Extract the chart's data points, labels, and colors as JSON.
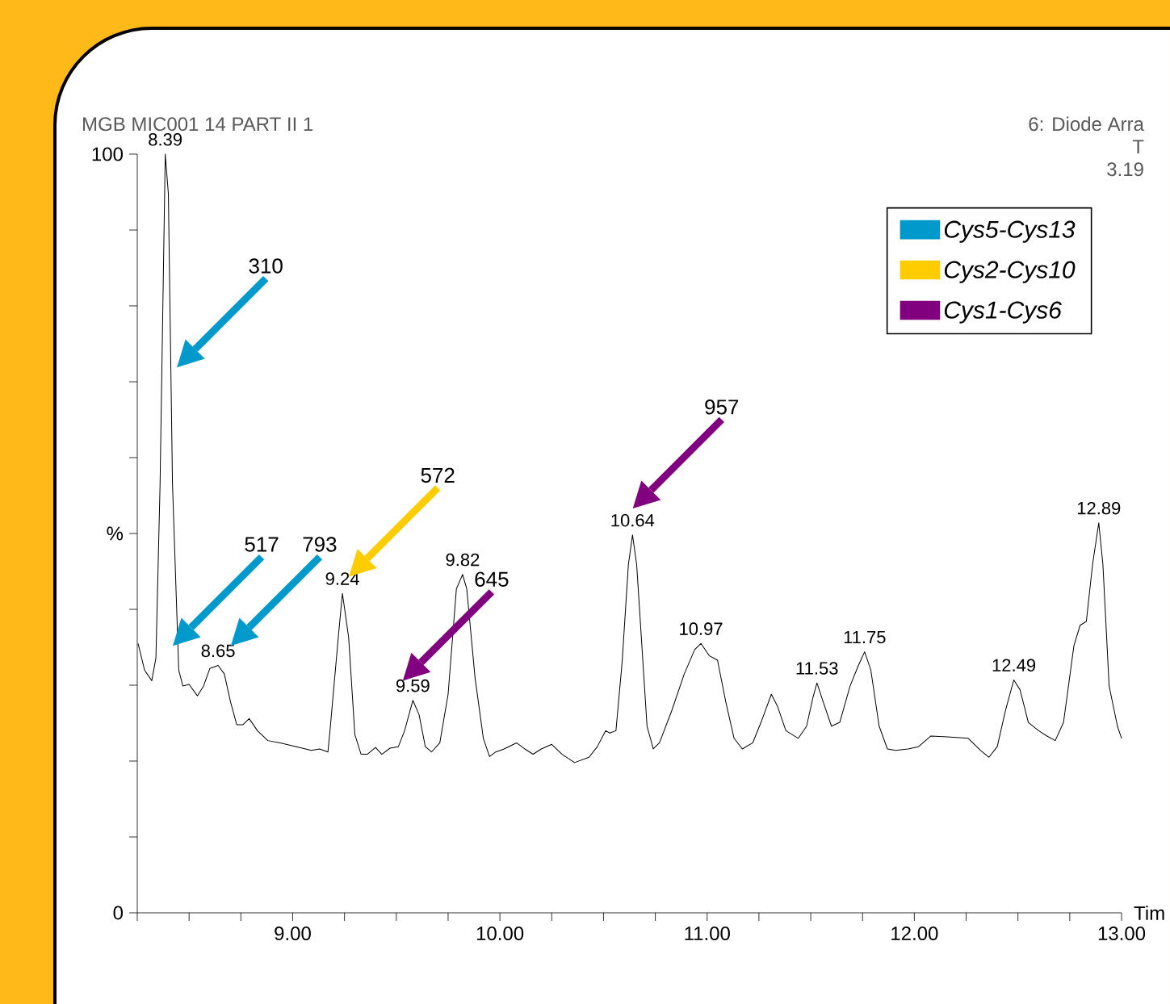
{
  "chart_data": {
    "type": "line",
    "title": "MGB MIC001 14 PART II 1",
    "xlabel": "Tim",
    "annotations": [
      "6: Diode Arra",
      "T",
      "3.19",
      {
        "text": "8.39",
        "x": 8.385,
        "y": 100
      },
      {
        "text": "8.65",
        "x": 8.64,
        "y": 32.6
      },
      {
        "text": "9.24",
        "x": 9.24,
        "y": 42.1
      },
      {
        "text": "9.59",
        "x": 9.58,
        "y": 28.0
      },
      {
        "text": "9.82",
        "x": 9.82,
        "y": 44.6
      },
      {
        "text": "10.64",
        "x": 10.64,
        "y": 49.8
      },
      {
        "text": "10.97",
        "x": 10.97,
        "y": 35.5
      },
      {
        "text": "11.53",
        "x": 11.53,
        "y": 30.3
      },
      {
        "text": "11.75",
        "x": 11.76,
        "y": 34.4
      },
      {
        "text": "12.49",
        "x": 12.48,
        "y": 30.7
      },
      {
        "text": "12.89",
        "x": 12.89,
        "y": 51.4
      },
      "310",
      "517",
      "793",
      "572",
      "645",
      "957"
    ],
    "series": [
      {
        "type": "line",
        "color": "#000000",
        "x": [
          8.254,
          8.285,
          8.32,
          8.34,
          8.36,
          8.385,
          8.4,
          8.42,
          8.45,
          8.47,
          8.5,
          8.54,
          8.57,
          8.6,
          8.64,
          8.67,
          8.7,
          8.73,
          8.76,
          8.79,
          8.83,
          8.88,
          8.94,
          9.03,
          9.09,
          9.13,
          9.17,
          9.18,
          9.22,
          9.24,
          9.27,
          9.3,
          9.33,
          9.36,
          9.4,
          9.43,
          9.47,
          9.51,
          9.54,
          9.58,
          9.61,
          9.64,
          9.67,
          9.71,
          9.75,
          9.79,
          9.82,
          9.84,
          9.88,
          9.92,
          9.95,
          9.98,
          10.02,
          10.08,
          10.12,
          10.16,
          10.2,
          10.25,
          10.3,
          10.36,
          10.43,
          10.47,
          10.51,
          10.53,
          10.56,
          10.59,
          10.62,
          10.64,
          10.66,
          10.69,
          10.71,
          10.74,
          10.77,
          10.83,
          10.89,
          10.94,
          10.97,
          11.01,
          11.05,
          11.09,
          11.13,
          11.17,
          11.22,
          11.26,
          11.31,
          11.34,
          11.38,
          11.44,
          11.48,
          11.51,
          11.53,
          11.56,
          11.6,
          11.64,
          11.69,
          11.73,
          11.76,
          11.79,
          11.83,
          11.87,
          11.91,
          11.97,
          12.02,
          12.08,
          12.16,
          12.26,
          12.32,
          12.36,
          12.4,
          12.44,
          12.48,
          12.51,
          12.55,
          12.6,
          12.64,
          12.68,
          12.72,
          12.77,
          12.8,
          12.83,
          12.86,
          12.89,
          12.91,
          12.94,
          12.98,
          13.0
        ],
        "values": [
          35.5,
          32.0,
          30.6,
          33.6,
          56.5,
          100,
          94.8,
          56.5,
          32.0,
          29.9,
          30.1,
          28.6,
          29.9,
          32.2,
          32.6,
          31.5,
          27.8,
          24.8,
          24.8,
          25.6,
          24.0,
          22.7,
          22.4,
          21.8,
          21.4,
          21.6,
          21.2,
          24.0,
          36.3,
          42.1,
          36.3,
          23.5,
          20.9,
          20.9,
          21.8,
          20.9,
          21.7,
          21.9,
          24.0,
          28.0,
          26.1,
          21.9,
          21.2,
          22.4,
          28.8,
          42.7,
          44.6,
          42.7,
          31.0,
          23.0,
          20.6,
          21.2,
          21.6,
          22.4,
          21.6,
          20.9,
          21.6,
          22.2,
          20.9,
          19.8,
          20.5,
          21.9,
          24.0,
          23.7,
          24.0,
          33.1,
          45.9,
          49.8,
          45.9,
          33.1,
          24.6,
          21.6,
          22.4,
          26.7,
          31.5,
          34.7,
          35.5,
          33.9,
          33.3,
          27.8,
          23.0,
          21.6,
          22.4,
          25.1,
          28.8,
          27.2,
          24.0,
          23.0,
          24.6,
          28.3,
          30.3,
          27.8,
          24.6,
          25.1,
          29.9,
          32.6,
          34.4,
          32.0,
          24.6,
          21.6,
          21.4,
          21.6,
          21.9,
          23.3,
          23.2,
          23.0,
          21.4,
          20.5,
          21.9,
          26.7,
          30.7,
          29.4,
          25.1,
          24.0,
          23.3,
          22.7,
          25.1,
          35.2,
          37.9,
          38.4,
          45.9,
          51.4,
          45.9,
          29.9,
          24.6,
          23.0
        ]
      },
      {
        "type": "scatter",
        "name": "Cys5-Cys13",
        "color": "#0099cc",
        "x": [
          8.5,
          8.48,
          8.76
        ],
        "values": [
          73.5,
          36.8,
          36.8
        ]
      },
      {
        "type": "scatter",
        "name": "Cys2-Cys10",
        "color": "#ffcc00",
        "x": [
          9.33
        ],
        "values": [
          45.9
        ]
      },
      {
        "type": "scatter",
        "name": "Cys1-Cys6",
        "color": "#800080",
        "x": [
          9.59,
          10.7
        ],
        "values": [
          32.2,
          54.9
        ]
      }
    ],
    "xlim": [
      8.25,
      13.0
    ],
    "ylim": [
      0,
      100
    ],
    "xticks": [
      {
        "value": 8.25,
        "label": null
      },
      {
        "value": 8.5,
        "label": null
      },
      {
        "value": 8.75,
        "label": null
      },
      {
        "value": 9,
        "label": "9.00"
      },
      {
        "value": 9.25,
        "label": null
      },
      {
        "value": 9.5,
        "label": null
      },
      {
        "value": 9.75,
        "label": null
      },
      {
        "value": 10,
        "label": "10.00"
      },
      {
        "value": 10.25,
        "label": null
      },
      {
        "value": 10.5,
        "label": null
      },
      {
        "value": 10.75,
        "label": null
      },
      {
        "value": 11,
        "label": "11.00"
      },
      {
        "value": 11.25,
        "label": null
      },
      {
        "value": 11.5,
        "label": null
      },
      {
        "value": 11.75,
        "label": null
      },
      {
        "value": 12,
        "label": "12.00"
      },
      {
        "value": 12.25,
        "label": null
      },
      {
        "value": 12.5,
        "label": null
      },
      {
        "value": 12.75,
        "label": null
      },
      {
        "value": 13,
        "label": "13.00"
      }
    ],
    "yticks": [
      0,
      {
        "value": 10,
        "label": null
      },
      {
        "value": 20,
        "label": null
      },
      {
        "value": 30,
        "label": null
      },
      {
        "value": 40,
        "label": null
      },
      {
        "value": 50,
        "label": "%"
      },
      {
        "value": 60,
        "label": null
      },
      {
        "value": 70,
        "label": null
      },
      {
        "value": 80,
        "label": null
      },
      {
        "value": 90,
        "label": null
      },
      100
    ],
    "grid": false,
    "legend": "top right"
  }
}
